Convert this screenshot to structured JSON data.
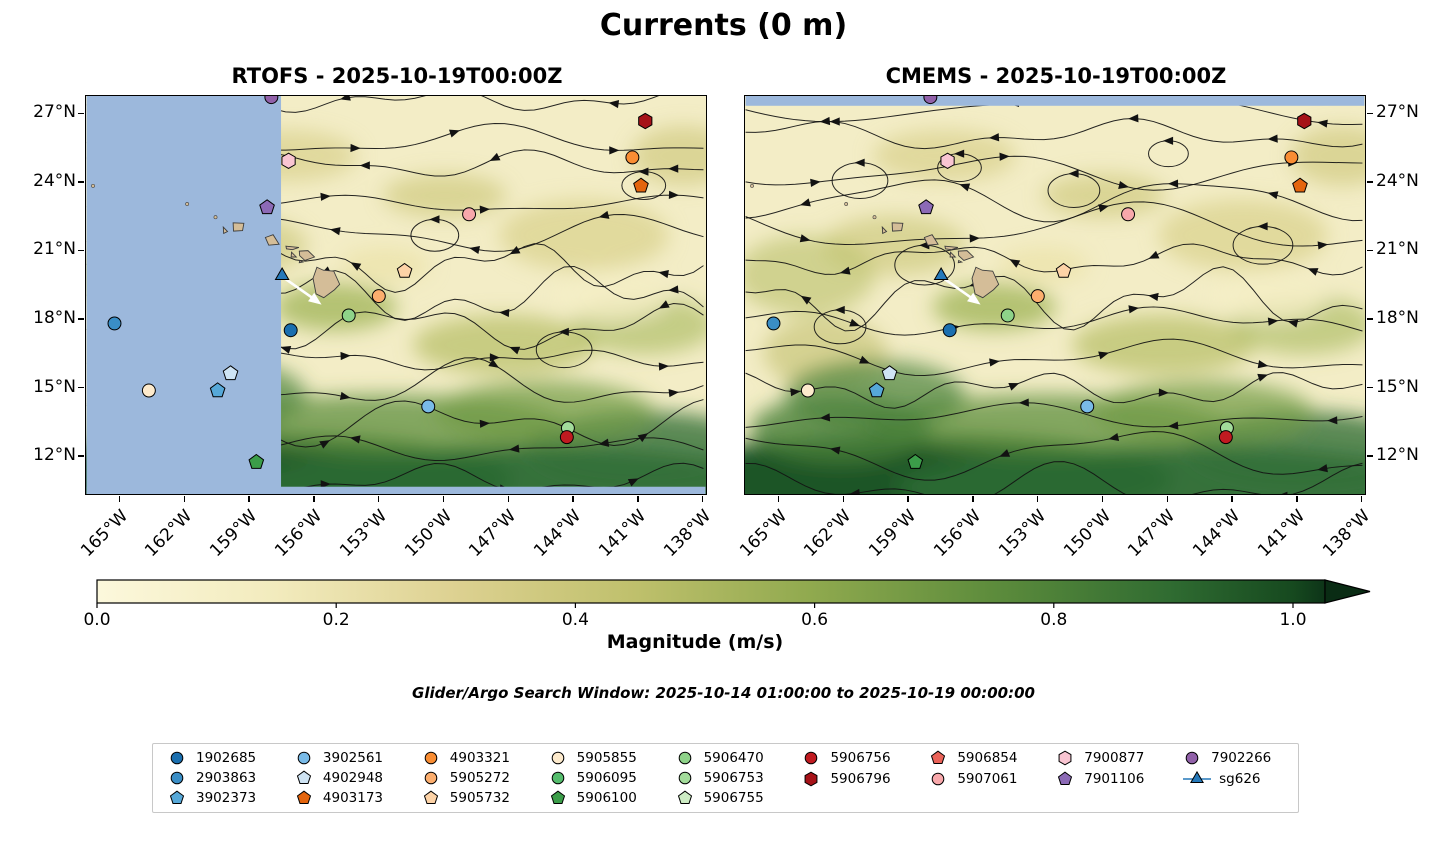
{
  "title": "Currents (0 m)",
  "search_window": "Glider/Argo Search Window: 2025-10-14 01:00:00 to 2025-10-19 00:00:00",
  "chart_data": {
    "type": "heatmap",
    "subtype": "ocean-current-magnitude-streamplot-comparison",
    "title": "Currents (0 m)",
    "description": "Two-panel comparison of surface (0 m) ocean current magnitude with streamlines and overlaid Argo float / glider positions around the Hawaiian Islands.",
    "panels": [
      {
        "name": "RTOFS",
        "timestamp": "2025-10-19T00:00Z",
        "title": "RTOFS - 2025-10-19T00:00Z",
        "no_data_mask": "region west of ~157.5°W and a strip along the southern edge shown as blank light blue"
      },
      {
        "name": "CMEMS",
        "timestamp": "2025-10-19T00:00Z",
        "title": "CMEMS - 2025-10-19T00:00Z",
        "no_data_mask": "thin strip along the northern edge shown as blank light blue"
      }
    ],
    "lon_range_deg": [
      -166.6,
      -137.8
    ],
    "lat_range_deg": [
      10.3,
      27.8
    ],
    "lon_ticks": [
      {
        "label": "165°W",
        "deg": -165
      },
      {
        "label": "162°W",
        "deg": -162
      },
      {
        "label": "159°W",
        "deg": -159
      },
      {
        "label": "156°W",
        "deg": -156
      },
      {
        "label": "153°W",
        "deg": -153
      },
      {
        "label": "150°W",
        "deg": -150
      },
      {
        "label": "147°W",
        "deg": -147
      },
      {
        "label": "144°W",
        "deg": -144
      },
      {
        "label": "141°W",
        "deg": -141
      },
      {
        "label": "138°W",
        "deg": -138
      }
    ],
    "lat_ticks": [
      {
        "label": "27°N",
        "deg": 27
      },
      {
        "label": "24°N",
        "deg": 24
      },
      {
        "label": "21°N",
        "deg": 21
      },
      {
        "label": "18°N",
        "deg": 18
      },
      {
        "label": "15°N",
        "deg": 15
      },
      {
        "label": "12°N",
        "deg": 12
      }
    ],
    "colorbar": {
      "label": "Magnitude (m/s)",
      "tick_labels": [
        "0.0",
        "0.2",
        "0.4",
        "0.6",
        "0.8",
        "1.0"
      ],
      "tick_values": [
        0,
        0.2,
        0.4,
        0.6,
        0.8,
        1.0
      ],
      "vmin": 0,
      "vmax": 1,
      "extend": "max",
      "stops": [
        {
          "v": 0.0,
          "c": "#fcf8dc"
        },
        {
          "v": 0.15,
          "c": "#f2ebbd"
        },
        {
          "v": 0.3,
          "c": "#ddd191"
        },
        {
          "v": 0.45,
          "c": "#bfc06c"
        },
        {
          "v": 0.6,
          "c": "#8fa94e"
        },
        {
          "v": 0.75,
          "c": "#5d8c3c"
        },
        {
          "v": 0.9,
          "c": "#2f6b31"
        },
        {
          "v": 1.0,
          "c": "#16491f"
        },
        {
          "v": 1.027,
          "c": "#0d3418"
        }
      ],
      "extend_color": "#0a2c14"
    },
    "mask_color": "#9cb8dc",
    "land_color": "#d4bd98",
    "streamline_color": "#121212",
    "platforms": [
      {
        "id": "1902685",
        "marker": "circle",
        "color": "#1a6faf",
        "lat": 17.5,
        "lon": -157.1
      },
      {
        "id": "2903863",
        "marker": "circle",
        "color": "#3a8ec6",
        "lat": 17.8,
        "lon": -165.3
      },
      {
        "id": "3902373",
        "marker": "pentagon",
        "color": "#56a8d8",
        "lat": 14.85,
        "lon": -160.5
      },
      {
        "id": "3902561",
        "marker": "circle",
        "color": "#79bbe8",
        "lat": 14.15,
        "lon": -150.7
      },
      {
        "id": "4902948",
        "marker": "pentagon",
        "color": "#cfe4f4",
        "lat": 15.6,
        "lon": -159.9
      },
      {
        "id": "4903173",
        "marker": "pentagon",
        "color": "#e4650e",
        "lat": 23.85,
        "lon": -140.8
      },
      {
        "id": "4903321",
        "marker": "circle",
        "color": "#f98d33",
        "lat": 25.1,
        "lon": -141.2
      },
      {
        "id": "5905272",
        "marker": "circle",
        "color": "#fcae6e",
        "lat": 19.0,
        "lon": -153.0
      },
      {
        "id": "5905732",
        "marker": "pentagon",
        "color": "#fdd3a7",
        "lat": 20.1,
        "lon": -151.8
      },
      {
        "id": "5905855",
        "marker": "circle",
        "color": "#fdeacc",
        "lat": 14.85,
        "lon": -163.7
      },
      {
        "id": "5906095",
        "marker": "circle",
        "color": "#55bd6d",
        "lat": null,
        "lon": null
      },
      {
        "id": "5906100",
        "marker": "pentagon",
        "color": "#3b9d49",
        "lat": 11.7,
        "lon": -158.7
      },
      {
        "id": "5906470",
        "marker": "circle",
        "color": "#8ed389",
        "lat": 18.15,
        "lon": -154.4
      },
      {
        "id": "5906753",
        "marker": "circle",
        "color": "#a3dc9b",
        "lat": 13.2,
        "lon": -144.2
      },
      {
        "id": "5906755",
        "marker": "pentagon",
        "color": "#cdecc4",
        "lat": null,
        "lon": null
      },
      {
        "id": "5906756",
        "marker": "circle",
        "color": "#c01a20",
        "lat": 12.8,
        "lon": -144.25
      },
      {
        "id": "5906796",
        "marker": "hexagon",
        "color": "#a61218",
        "lat": 26.7,
        "lon": -140.6
      },
      {
        "id": "5906854",
        "marker": "pentagon",
        "color": "#ea6258",
        "lat": null,
        "lon": null
      },
      {
        "id": "5907061",
        "marker": "circle",
        "color": "#f8a8ab",
        "lat": 22.6,
        "lon": -148.8
      },
      {
        "id": "7900877",
        "marker": "hexagon",
        "color": "#f9c5d2",
        "lat": 24.95,
        "lon": -157.2
      },
      {
        "id": "7901106",
        "marker": "pentagon",
        "color": "#8c6ab6",
        "lat": 22.9,
        "lon": -158.2
      },
      {
        "id": "7902266",
        "marker": "circle",
        "color": "#9161a9",
        "lat": 27.75,
        "lon": -158.0
      },
      {
        "id": "sg626",
        "marker": "triangle-line",
        "color": "#2579ba",
        "lat": 19.9,
        "lon": -157.5
      }
    ],
    "legend_columns": [
      [
        "1902685",
        "2903863",
        "3902373"
      ],
      [
        "3902561",
        "4902948",
        "4903173"
      ],
      [
        "4903321",
        "5905272",
        "5905732"
      ],
      [
        "5905855",
        "5906095",
        "5906100"
      ],
      [
        "5906470",
        "5906753",
        "5906755"
      ],
      [
        "5906756",
        "5906796"
      ],
      [
        "5906854",
        "5907061"
      ],
      [
        "7900877",
        "7901106"
      ],
      [
        "7902266",
        "sg626"
      ]
    ],
    "annotation": {
      "id": "sg626",
      "note": "white arrow from glider pointing southeast toward the Big Island"
    }
  }
}
